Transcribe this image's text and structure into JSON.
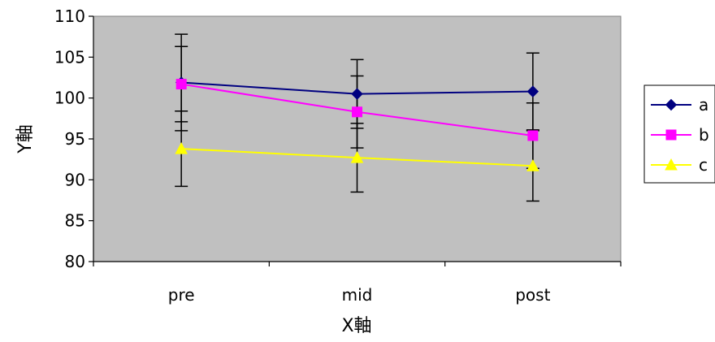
{
  "chart_data": {
    "type": "line",
    "title": "",
    "xlabel": "X軸",
    "ylabel": "Y軸",
    "categories": [
      "pre",
      "mid",
      "post"
    ],
    "ylim": [
      80,
      110
    ],
    "yticks": [
      80,
      85,
      90,
      95,
      100,
      105,
      110
    ],
    "grid": false,
    "plot_background": "#c0c0c0",
    "legend_position": "right",
    "series": [
      {
        "name": "a",
        "color": "#000080",
        "marker": "diamond",
        "values": [
          101.9,
          100.5,
          100.8
        ],
        "error": [
          5.9,
          4.2,
          4.7
        ]
      },
      {
        "name": "b",
        "color": "#ff00ff",
        "marker": "square",
        "values": [
          101.7,
          98.3,
          95.4
        ],
        "error": [
          4.6,
          4.4,
          4.0
        ]
      },
      {
        "name": "c",
        "color": "#ffff00",
        "marker": "triangle",
        "values": [
          93.8,
          92.7,
          91.7
        ],
        "error": [
          4.6,
          4.2,
          4.3
        ]
      }
    ]
  }
}
